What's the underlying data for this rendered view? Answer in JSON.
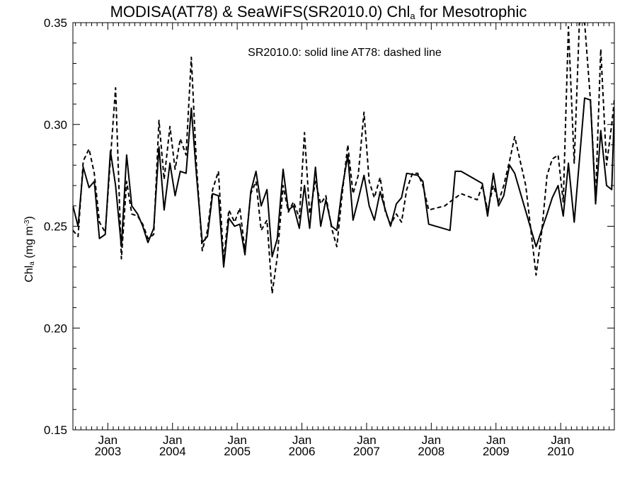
{
  "chart_data": {
    "type": "line",
    "title": {
      "main": "MODISA(AT78) & SeaWiFS(SR2010.0)  Chl",
      "sub": "a",
      "tail": " for Mesotrophic"
    },
    "ylabel": {
      "main": "Chl",
      "sub": "a",
      "mid": " (mg m",
      "sup": "-3",
      "tail": ")"
    },
    "annotation": "SR2010.0: solid line   AT78: dashed line",
    "xlim": [
      2002.46,
      2010.83
    ],
    "ylim": [
      0.15,
      0.35
    ],
    "y_ticks": [
      "0.15",
      "0.20",
      "0.25",
      "0.30",
      "0.35"
    ],
    "x_ticks": [
      {
        "top": "Jan",
        "bottom": "2003",
        "x": 2003.0
      },
      {
        "top": "Jan",
        "bottom": "2004",
        "x": 2004.0
      },
      {
        "top": "Jan",
        "bottom": "2005",
        "x": 2005.0
      },
      {
        "top": "Jan",
        "bottom": "2006",
        "x": 2006.0
      },
      {
        "top": "Jan",
        "bottom": "2007",
        "x": 2007.0
      },
      {
        "top": "Jan",
        "bottom": "2008",
        "x": 2008.0
      },
      {
        "top": "Jan",
        "bottom": "2009",
        "x": 2009.0
      },
      {
        "top": "Jan",
        "bottom": "2010",
        "x": 2010.0
      }
    ],
    "grid": false,
    "series": [
      {
        "name": "SR2010.0",
        "style": "solid",
        "color": "#000000",
        "points": [
          [
            2002.46,
            0.26
          ],
          [
            2002.54,
            0.25
          ],
          [
            2002.62,
            0.279
          ],
          [
            2002.71,
            0.269
          ],
          [
            2002.79,
            0.272
          ],
          [
            2002.87,
            0.244
          ],
          [
            2002.96,
            0.246
          ],
          [
            2003.04,
            0.287
          ],
          [
            2003.12,
            0.27
          ],
          [
            2003.21,
            0.24
          ],
          [
            2003.29,
            0.285
          ],
          [
            2003.37,
            0.26
          ],
          [
            2003.46,
            0.256
          ],
          [
            2003.54,
            0.25
          ],
          [
            2003.62,
            0.242
          ],
          [
            2003.71,
            0.249
          ],
          [
            2003.79,
            0.289
          ],
          [
            2003.87,
            0.258
          ],
          [
            2003.96,
            0.281
          ],
          [
            2004.04,
            0.265
          ],
          [
            2004.12,
            0.277
          ],
          [
            2004.21,
            0.276
          ],
          [
            2004.29,
            0.308
          ],
          [
            2004.37,
            0.275
          ],
          [
            2004.46,
            0.242
          ],
          [
            2004.54,
            0.245
          ],
          [
            2004.62,
            0.266
          ],
          [
            2004.71,
            0.265
          ],
          [
            2004.79,
            0.23
          ],
          [
            2004.87,
            0.254
          ],
          [
            2004.96,
            0.25
          ],
          [
            2005.04,
            0.251
          ],
          [
            2005.12,
            0.236
          ],
          [
            2005.21,
            0.267
          ],
          [
            2005.29,
            0.277
          ],
          [
            2005.37,
            0.26
          ],
          [
            2005.46,
            0.268
          ],
          [
            2005.54,
            0.235
          ],
          [
            2005.62,
            0.244
          ],
          [
            2005.71,
            0.278
          ],
          [
            2005.79,
            0.258
          ],
          [
            2005.87,
            0.26
          ],
          [
            2005.96,
            0.249
          ],
          [
            2006.04,
            0.27
          ],
          [
            2006.12,
            0.249
          ],
          [
            2006.21,
            0.279
          ],
          [
            2006.29,
            0.25
          ],
          [
            2006.37,
            0.263
          ],
          [
            2006.46,
            0.25
          ],
          [
            2006.54,
            0.248
          ],
          [
            2006.62,
            0.268
          ],
          [
            2006.71,
            0.285
          ],
          [
            2006.79,
            0.253
          ],
          [
            2006.87,
            0.263
          ],
          [
            2006.96,
            0.275
          ],
          [
            2007.04,
            0.26
          ],
          [
            2007.12,
            0.253
          ],
          [
            2007.21,
            0.267
          ],
          [
            2007.29,
            0.258
          ],
          [
            2007.37,
            0.25
          ],
          [
            2007.46,
            0.261
          ],
          [
            2007.54,
            0.264
          ],
          [
            2007.62,
            0.276
          ],
          [
            2007.79,
            0.275
          ],
          [
            2007.87,
            0.272
          ],
          [
            2007.96,
            0.251
          ],
          [
            2008.29,
            0.248
          ],
          [
            2008.37,
            0.277
          ],
          [
            2008.46,
            0.277
          ],
          [
            2008.79,
            0.271
          ],
          [
            2008.87,
            0.255
          ],
          [
            2008.96,
            0.276
          ],
          [
            2009.04,
            0.26
          ],
          [
            2009.12,
            0.265
          ],
          [
            2009.21,
            0.28
          ],
          [
            2009.29,
            0.276
          ],
          [
            2009.62,
            0.24
          ],
          [
            2009.79,
            0.256
          ],
          [
            2009.87,
            0.264
          ],
          [
            2009.96,
            0.27
          ],
          [
            2010.04,
            0.255
          ],
          [
            2010.12,
            0.281
          ],
          [
            2010.21,
            0.252
          ],
          [
            2010.37,
            0.313
          ],
          [
            2010.46,
            0.312
          ],
          [
            2010.54,
            0.261
          ],
          [
            2010.62,
            0.297
          ],
          [
            2010.71,
            0.27
          ],
          [
            2010.79,
            0.268
          ],
          [
            2010.83,
            0.308
          ]
        ]
      },
      {
        "name": "AT78",
        "style": "dashed",
        "color": "#000000",
        "points": [
          [
            2002.46,
            0.248
          ],
          [
            2002.54,
            0.245
          ],
          [
            2002.62,
            0.282
          ],
          [
            2002.71,
            0.288
          ],
          [
            2002.79,
            0.276
          ],
          [
            2002.87,
            0.252
          ],
          [
            2002.96,
            0.247
          ],
          [
            2003.04,
            0.283
          ],
          [
            2003.12,
            0.318
          ],
          [
            2003.21,
            0.234
          ],
          [
            2003.29,
            0.272
          ],
          [
            2003.37,
            0.256
          ],
          [
            2003.46,
            0.255
          ],
          [
            2003.54,
            0.251
          ],
          [
            2003.62,
            0.244
          ],
          [
            2003.71,
            0.246
          ],
          [
            2003.79,
            0.302
          ],
          [
            2003.87,
            0.273
          ],
          [
            2003.96,
            0.299
          ],
          [
            2004.04,
            0.278
          ],
          [
            2004.12,
            0.293
          ],
          [
            2004.21,
            0.285
          ],
          [
            2004.29,
            0.333
          ],
          [
            2004.37,
            0.28
          ],
          [
            2004.46,
            0.238
          ],
          [
            2004.54,
            0.248
          ],
          [
            2004.62,
            0.268
          ],
          [
            2004.71,
            0.277
          ],
          [
            2004.79,
            0.233
          ],
          [
            2004.87,
            0.258
          ],
          [
            2004.96,
            0.252
          ],
          [
            2005.04,
            0.259
          ],
          [
            2005.12,
            0.238
          ],
          [
            2005.21,
            0.266
          ],
          [
            2005.29,
            0.272
          ],
          [
            2005.37,
            0.248
          ],
          [
            2005.46,
            0.253
          ],
          [
            2005.54,
            0.217
          ],
          [
            2005.62,
            0.235
          ],
          [
            2005.71,
            0.27
          ],
          [
            2005.79,
            0.257
          ],
          [
            2005.87,
            0.262
          ],
          [
            2005.96,
            0.254
          ],
          [
            2006.04,
            0.296
          ],
          [
            2006.12,
            0.256
          ],
          [
            2006.21,
            0.272
          ],
          [
            2006.29,
            0.261
          ],
          [
            2006.37,
            0.265
          ],
          [
            2006.46,
            0.249
          ],
          [
            2006.54,
            0.24
          ],
          [
            2006.62,
            0.265
          ],
          [
            2006.71,
            0.29
          ],
          [
            2006.79,
            0.266
          ],
          [
            2006.87,
            0.275
          ],
          [
            2006.96,
            0.306
          ],
          [
            2007.04,
            0.272
          ],
          [
            2007.12,
            0.264
          ],
          [
            2007.21,
            0.274
          ],
          [
            2007.29,
            0.257
          ],
          [
            2007.37,
            0.251
          ],
          [
            2007.46,
            0.256
          ],
          [
            2007.54,
            0.252
          ],
          [
            2007.62,
            0.268
          ],
          [
            2007.71,
            0.276
          ],
          [
            2007.79,
            0.276
          ],
          [
            2007.87,
            0.27
          ],
          [
            2007.96,
            0.258
          ],
          [
            2008.21,
            0.26
          ],
          [
            2008.29,
            0.262
          ],
          [
            2008.46,
            0.266
          ],
          [
            2008.71,
            0.263
          ],
          [
            2008.79,
            0.27
          ],
          [
            2008.87,
            0.258
          ],
          [
            2008.96,
            0.27
          ],
          [
            2009.04,
            0.262
          ],
          [
            2009.12,
            0.27
          ],
          [
            2009.21,
            0.282
          ],
          [
            2009.29,
            0.294
          ],
          [
            2009.46,
            0.27
          ],
          [
            2009.62,
            0.226
          ],
          [
            2009.71,
            0.248
          ],
          [
            2009.79,
            0.275
          ],
          [
            2009.87,
            0.283
          ],
          [
            2009.96,
            0.285
          ],
          [
            2010.04,
            0.262
          ],
          [
            2010.12,
            0.348
          ],
          [
            2010.21,
            0.281
          ],
          [
            2010.29,
            0.35
          ],
          [
            2010.37,
            0.35
          ],
          [
            2010.46,
            0.312
          ],
          [
            2010.54,
            0.264
          ],
          [
            2010.62,
            0.337
          ],
          [
            2010.71,
            0.28
          ],
          [
            2010.79,
            0.3
          ],
          [
            2010.83,
            0.312
          ]
        ]
      }
    ]
  }
}
